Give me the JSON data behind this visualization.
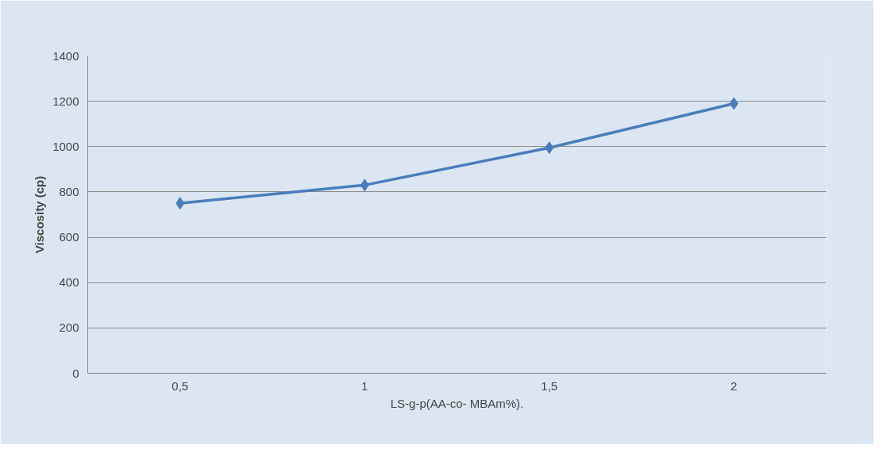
{
  "chart_data": {
    "type": "line",
    "xlabel": "LS-g-p(AA-co- MBAm%).",
    "ylabel": "Viscosity (cp)",
    "categories": [
      "0,5",
      "1",
      "1,5",
      "2"
    ],
    "series": [
      {
        "color": "#4a7ebb",
        "values": [
          750,
          830,
          995,
          1190
        ]
      }
    ],
    "ylim": [
      0,
      1400
    ],
    "yticks": [
      0,
      200,
      400,
      600,
      800,
      1000,
      1200,
      1400
    ],
    "grid": "y",
    "marker": "diamond",
    "line_style": "solid"
  }
}
